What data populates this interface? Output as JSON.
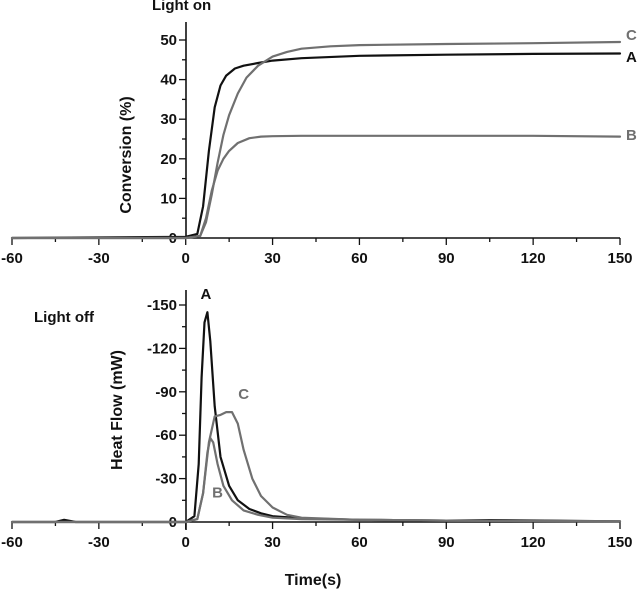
{
  "chart_data": [
    {
      "type": "line",
      "panel": "top",
      "annotation": "Light on",
      "ylabel": "Conversion (%)",
      "xlabel": "",
      "xlim": [
        -60,
        150
      ],
      "ylim": [
        -1,
        53
      ],
      "xticks": [
        -60,
        -30,
        0,
        30,
        60,
        90,
        120,
        150
      ],
      "yticks": [
        0,
        10,
        20,
        30,
        40,
        50
      ],
      "grid": false,
      "series": [
        {
          "name": "A",
          "color": "#111111",
          "x": [
            -60,
            0,
            4,
            6,
            8,
            10,
            12,
            14,
            17,
            20,
            25,
            30,
            40,
            60,
            90,
            120,
            150
          ],
          "y": [
            0,
            0.3,
            1,
            8,
            22,
            33,
            38.5,
            41,
            42.8,
            43.5,
            44.2,
            44.8,
            45.4,
            46,
            46.3,
            46.5,
            46.6
          ]
        },
        {
          "name": "B",
          "color": "#707070",
          "x": [
            -60,
            0,
            5,
            7,
            9,
            11,
            13,
            15,
            18,
            22,
            26,
            30,
            40,
            60,
            90,
            120,
            150
          ],
          "y": [
            0,
            0,
            0.5,
            5,
            12,
            17,
            20,
            22,
            24,
            25.2,
            25.6,
            25.7,
            25.8,
            25.8,
            25.8,
            25.8,
            25.6
          ]
        },
        {
          "name": "C",
          "color": "#707070",
          "x": [
            -60,
            0,
            5,
            7,
            9,
            11,
            13,
            15,
            18,
            21,
            25,
            30,
            35,
            40,
            50,
            60,
            90,
            120,
            150
          ],
          "y": [
            0,
            0,
            0.5,
            4,
            11,
            19,
            26,
            31,
            36.5,
            40.5,
            43.5,
            45.8,
            47,
            47.8,
            48.4,
            48.7,
            49,
            49.2,
            49.5
          ]
        }
      ]
    },
    {
      "type": "line",
      "panel": "bottom",
      "annotation": "Light off",
      "ylabel": "Heat Flow (mW)",
      "xlabel": "Time(s)",
      "xlim": [
        -60,
        150
      ],
      "ylim": [
        3,
        -157
      ],
      "y_inverted": true,
      "xticks": [
        -60,
        -30,
        0,
        30,
        60,
        90,
        120,
        150
      ],
      "yticks": [
        0,
        -30,
        -60,
        -90,
        -120,
        -150
      ],
      "grid": false,
      "series": [
        {
          "name": "A",
          "color": "#111111",
          "x": [
            -60,
            -45,
            -42,
            -38,
            -20,
            0,
            3,
            4.5,
            5.5,
            6.5,
            7.5,
            8.5,
            10,
            12,
            15,
            18,
            22,
            26,
            30,
            40,
            60,
            90,
            105,
            150
          ],
          "y": [
            0,
            0,
            -1.5,
            0,
            0,
            0,
            -4,
            -40,
            -100,
            -138,
            -145,
            -125,
            -80,
            -45,
            -25,
            -15,
            -9,
            -6,
            -4,
            -2.5,
            -1.5,
            -1,
            -1.3,
            -0.5
          ]
        },
        {
          "name": "B",
          "color": "#707070",
          "x": [
            -60,
            0,
            4,
            6,
            7.5,
            8.5,
            9.5,
            11,
            13,
            16,
            20,
            25,
            30,
            40,
            60,
            90,
            150
          ],
          "y": [
            0,
            0,
            -2,
            -20,
            -48,
            -58,
            -55,
            -40,
            -25,
            -15,
            -8,
            -5,
            -3,
            -2,
            -1.5,
            -1,
            -0.5
          ]
        },
        {
          "name": "C",
          "color": "#707070",
          "x": [
            -60,
            0,
            4,
            6,
            8,
            10,
            12,
            14,
            16,
            18,
            20,
            23,
            26,
            30,
            35,
            40,
            60,
            90,
            150
          ],
          "y": [
            0,
            0,
            -2,
            -20,
            -55,
            -73,
            -74,
            -76,
            -76,
            -68,
            -50,
            -30,
            -18,
            -10,
            -5,
            -3,
            -1.5,
            -1,
            -0.5
          ]
        }
      ],
      "annotations": [
        {
          "text": "A",
          "x": 7,
          "y": -154,
          "color": "#111111"
        },
        {
          "text": "B",
          "x": 11,
          "y": -17,
          "color": "#707070"
        },
        {
          "text": "C",
          "x": 20,
          "y": -85,
          "color": "#707070"
        }
      ]
    }
  ]
}
